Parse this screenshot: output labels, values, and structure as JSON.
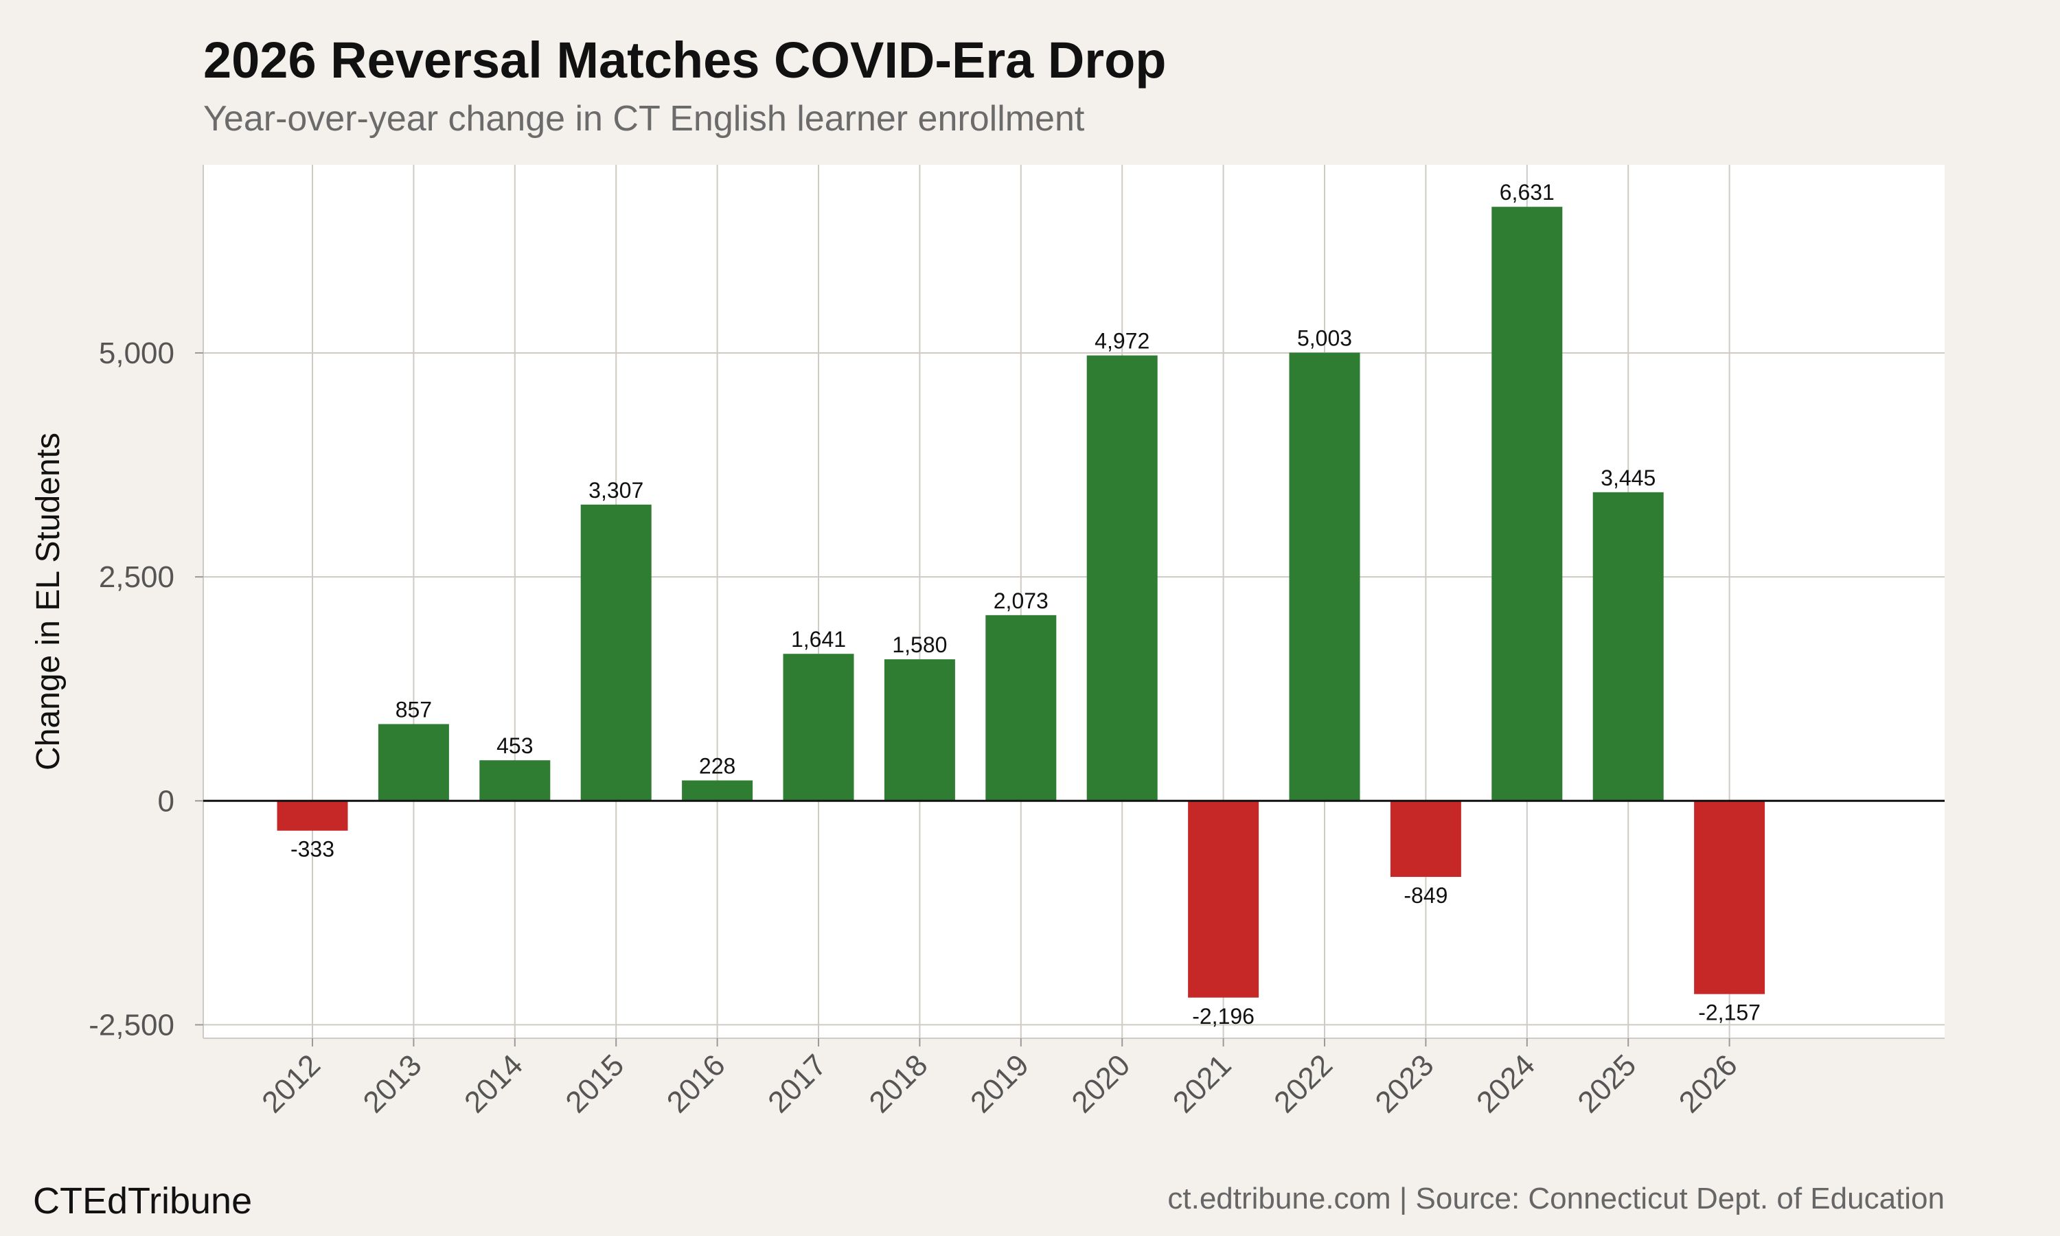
{
  "colors": {
    "positive": "#2e7d32",
    "negative": "#c62828",
    "grid": "#cfcac3",
    "panel": "#ffffff",
    "background": "#f4f1ec"
  },
  "chart_data": {
    "type": "bar",
    "title": "2026 Reversal Matches COVID-Era Drop",
    "subtitle": "Year-over-year change in CT English learner enrollment",
    "xlabel": "",
    "ylabel": "Change in EL Students",
    "ylim": [
      -2650,
      7100
    ],
    "yticks": [
      -2500,
      0,
      2500,
      5000
    ],
    "ytick_labels": [
      "-2,500",
      "0",
      "2,500",
      "5,000"
    ],
    "categories": [
      "2012",
      "2013",
      "2014",
      "2015",
      "2016",
      "2017",
      "2018",
      "2019",
      "2020",
      "2021",
      "2022",
      "2023",
      "2024",
      "2025",
      "2026"
    ],
    "values": [
      -333,
      857,
      453,
      3307,
      228,
      1641,
      1580,
      2073,
      4972,
      -2196,
      5003,
      -849,
      6631,
      3445,
      -2157
    ],
    "value_labels": [
      "-333",
      "857",
      "453",
      "3,307",
      "228",
      "1,641",
      "1,580",
      "2,073",
      "4,972",
      "-2,196",
      "5,003",
      "-849",
      "6,631",
      "3,445",
      "-2,157"
    ],
    "grid": true,
    "legend": "none"
  },
  "footer": {
    "brand": "CTEdTribune",
    "source": "ct.edtribune.com | Source: Connecticut Dept. of Education"
  }
}
